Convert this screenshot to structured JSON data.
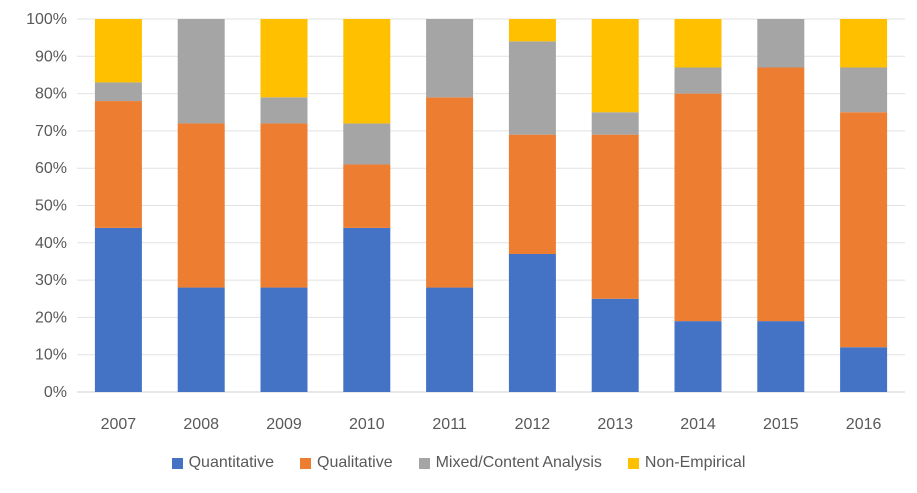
{
  "chart_data": {
    "type": "bar",
    "stacked": true,
    "percent_stacked": true,
    "categories": [
      "2007",
      "2008",
      "2009",
      "2010",
      "2011",
      "2012",
      "2013",
      "2014",
      "2015",
      "2016"
    ],
    "series": [
      {
        "name": "Quantitative",
        "color": "#4472C4",
        "values": [
          44,
          28,
          28,
          44,
          28,
          37,
          25,
          19,
          19,
          12
        ]
      },
      {
        "name": "Qualitative",
        "color": "#ED7D31",
        "values": [
          34,
          44,
          44,
          17,
          51,
          32,
          44,
          61,
          68,
          63
        ]
      },
      {
        "name": "Mixed/Content Analysis",
        "color": "#A5A5A5",
        "values": [
          5,
          28,
          7,
          11,
          21,
          25,
          6,
          7,
          13,
          12
        ]
      },
      {
        "name": "Non-Empirical",
        "color": "#FFC000",
        "values": [
          17,
          0,
          21,
          28,
          0,
          6,
          25,
          13,
          0,
          13
        ]
      }
    ],
    "y_ticks": [
      "0%",
      "10%",
      "20%",
      "30%",
      "40%",
      "50%",
      "60%",
      "70%",
      "80%",
      "90%",
      "100%"
    ],
    "ylim": [
      0,
      100
    ],
    "title": "",
    "xlabel": "",
    "ylabel": "",
    "grid": true,
    "legend_position": "bottom"
  }
}
